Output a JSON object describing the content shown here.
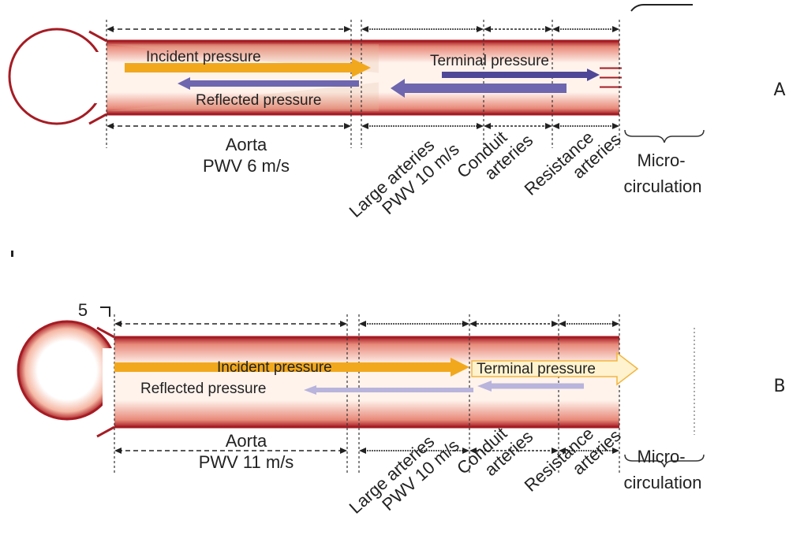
{
  "panels": [
    {
      "letter": "A",
      "incident": "Incident pressure",
      "reflected": "Reflected pressure",
      "terminal": "Terminal pressure",
      "segments": [
        {
          "lines": [
            "Aorta",
            "PWV 6 m/s"
          ]
        },
        {
          "lines": [
            "Large arteries",
            "PWV 10 m/s"
          ]
        },
        {
          "lines": [
            "Conduit",
            "arteries"
          ]
        },
        {
          "lines": [
            "Resistance",
            "arteries"
          ]
        },
        {
          "lines": [
            "Micro-",
            "circulation"
          ]
        }
      ]
    },
    {
      "letter": "B",
      "corner_mark": "5",
      "incident": "Incident pressure",
      "reflected": "Reflected pressure",
      "terminal": "Terminal pressure",
      "segments": [
        {
          "lines": [
            "Aorta",
            "PWV 11 m/s"
          ]
        },
        {
          "lines": [
            "Large arteries",
            "PWV 10 m/s"
          ]
        },
        {
          "lines": [
            "Conduit",
            "arteries"
          ]
        },
        {
          "lines": [
            "Resistance",
            "arteries"
          ]
        },
        {
          "lines": [
            "Micro-",
            "circulation"
          ]
        }
      ]
    }
  ]
}
